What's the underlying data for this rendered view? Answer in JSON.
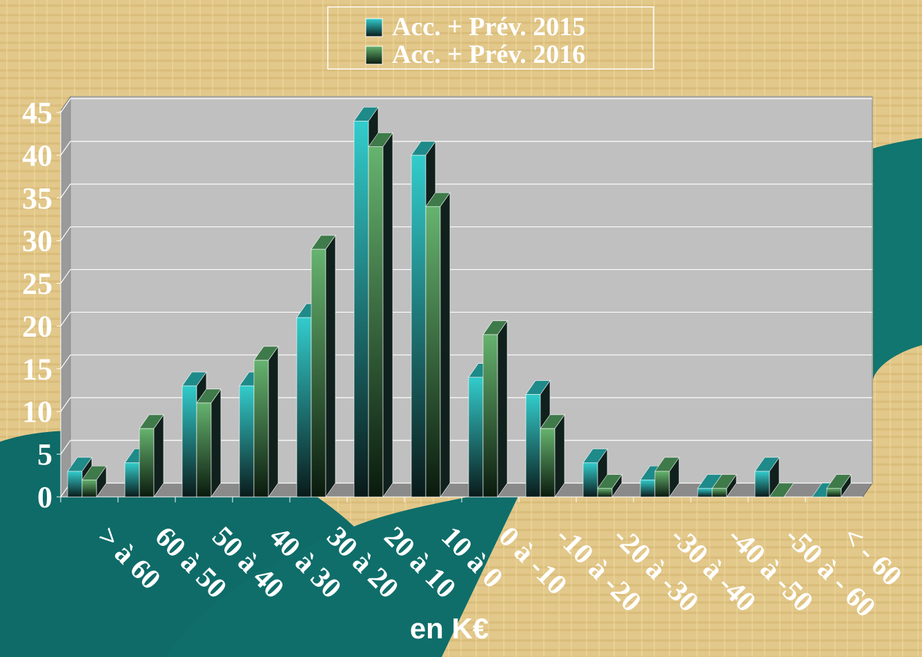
{
  "chart_data": {
    "type": "bar3d",
    "x_label": "en K€",
    "categories": [
      "> à 60",
      "60 à 50",
      "50 à 40",
      "40 à 30",
      "30 à 20",
      "20 à 10",
      "10 à 0",
      "0 à -10",
      "-10 à -20",
      "-20 à -30",
      "-30 à -40",
      "-40 à -50",
      "-50 à - 60",
      "< - 60"
    ],
    "series": [
      {
        "name": "Acc. + Prév. 2015",
        "color": "#33cccc",
        "values": [
          3,
          4,
          13,
          13,
          21,
          44,
          40,
          14,
          12,
          4,
          2,
          1,
          3,
          0
        ]
      },
      {
        "name": "Acc. + Prév. 2016",
        "color": "#66b36f",
        "values": [
          2,
          8,
          11,
          16,
          29,
          41,
          34,
          19,
          8,
          1,
          3,
          1,
          0,
          1
        ]
      }
    ],
    "ylim": [
      0,
      45
    ],
    "yticks": [
      0,
      5,
      10,
      15,
      20,
      25,
      30,
      35,
      40,
      45
    ],
    "grid": true
  }
}
